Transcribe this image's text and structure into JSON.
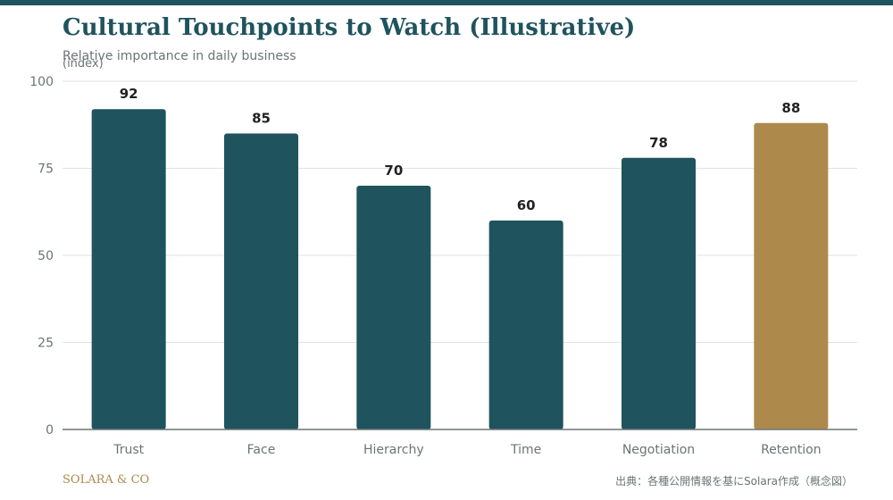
{
  "header": {
    "title": "Cultural Touchpoints to Watch (Illustrative)",
    "subtitle": "Relative importance in daily business"
  },
  "footer": {
    "brand": "SOLARA & CO",
    "source": "出典：各種公開情報を基にSolara作成（概念図）"
  },
  "colors": {
    "accent": "#1f535d",
    "highlight": "#ad8a4c",
    "grid": "#e2e2e2",
    "axis": "#6b7475"
  },
  "chart_data": {
    "type": "bar",
    "ylabel": "(index)",
    "xlabel": "",
    "categories": [
      "Trust",
      "Face",
      "Hierarchy",
      "Time",
      "Negotiation",
      "Retention"
    ],
    "values": [
      92,
      85,
      70,
      60,
      78,
      88
    ],
    "highlight_category": "Retention",
    "ylim": [
      0,
      100
    ],
    "yticks": [
      0,
      25,
      50,
      75,
      100
    ],
    "grid": true,
    "data_labels": true
  }
}
